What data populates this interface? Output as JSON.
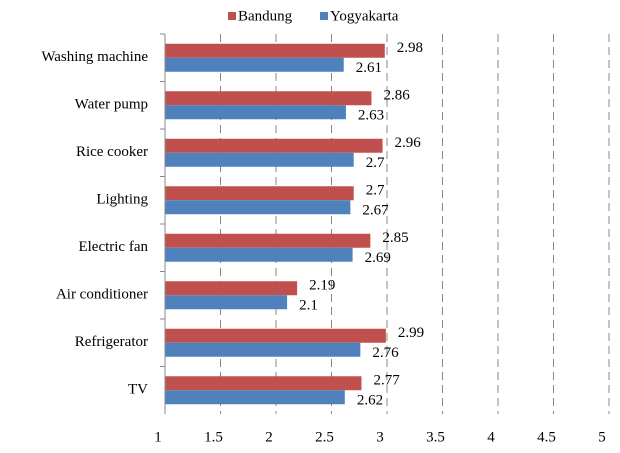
{
  "chart_data": {
    "type": "bar",
    "orientation": "horizontal",
    "categories": [
      "Washing machine",
      "Water pump",
      "Rice cooker",
      "Lighting",
      "Electric fan",
      "Air conditioner",
      "Refrigerator",
      "TV"
    ],
    "series": [
      {
        "name": "Bandung",
        "color": "#c0504d",
        "values": [
          2.98,
          2.86,
          2.96,
          2.7,
          2.85,
          2.19,
          2.99,
          2.77
        ]
      },
      {
        "name": "Yogyakarta",
        "color": "#4f81bd",
        "values": [
          2.61,
          2.63,
          2.7,
          2.67,
          2.69,
          2.1,
          2.76,
          2.62
        ]
      }
    ],
    "xlim": [
      1,
      5
    ],
    "xticks": [
      1,
      1.5,
      2,
      2.5,
      3,
      3.5,
      4,
      4.5,
      5
    ],
    "grid": true,
    "legend": "top"
  }
}
